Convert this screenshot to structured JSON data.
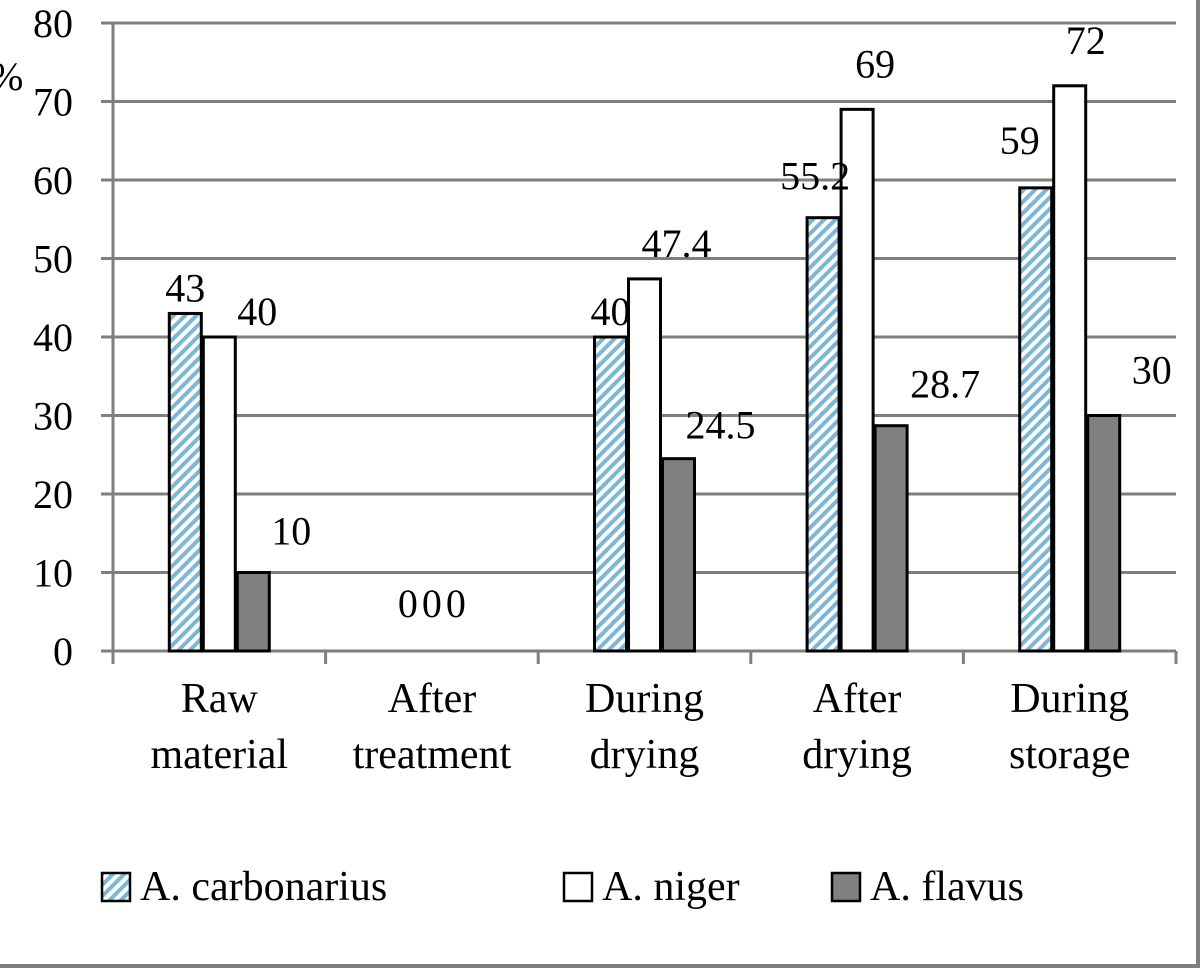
{
  "chart_data": {
    "type": "bar",
    "title": "",
    "xlabel": "",
    "ylabel": "%",
    "ylim": [
      0,
      80
    ],
    "yticks": [
      0,
      10,
      20,
      30,
      40,
      50,
      60,
      70,
      80
    ],
    "grid": true,
    "legend_position": "bottom",
    "categories": [
      [
        "Raw",
        "material"
      ],
      [
        "After",
        "treatment"
      ],
      [
        "During",
        "drying"
      ],
      [
        "After",
        "drying"
      ],
      [
        "During",
        "storage"
      ]
    ],
    "series": [
      {
        "name": "A. carbonarius",
        "values": [
          43,
          0,
          40,
          55.2,
          59
        ],
        "labels": [
          "43",
          "0",
          "40",
          "55.2",
          "59"
        ],
        "fill": "hatched",
        "color": "#7eb6d6"
      },
      {
        "name": "A. niger",
        "values": [
          40,
          0,
          47.4,
          69,
          72
        ],
        "labels": [
          "40",
          "0",
          "47.4",
          "69",
          "72"
        ],
        "fill": "solid",
        "color": "#ffffff"
      },
      {
        "name": "A. flavus",
        "values": [
          10,
          0,
          24.5,
          28.7,
          30
        ],
        "labels": [
          "10",
          "0",
          "24.5",
          "28.7",
          "30"
        ],
        "fill": "solid",
        "color": "#808080"
      }
    ]
  }
}
